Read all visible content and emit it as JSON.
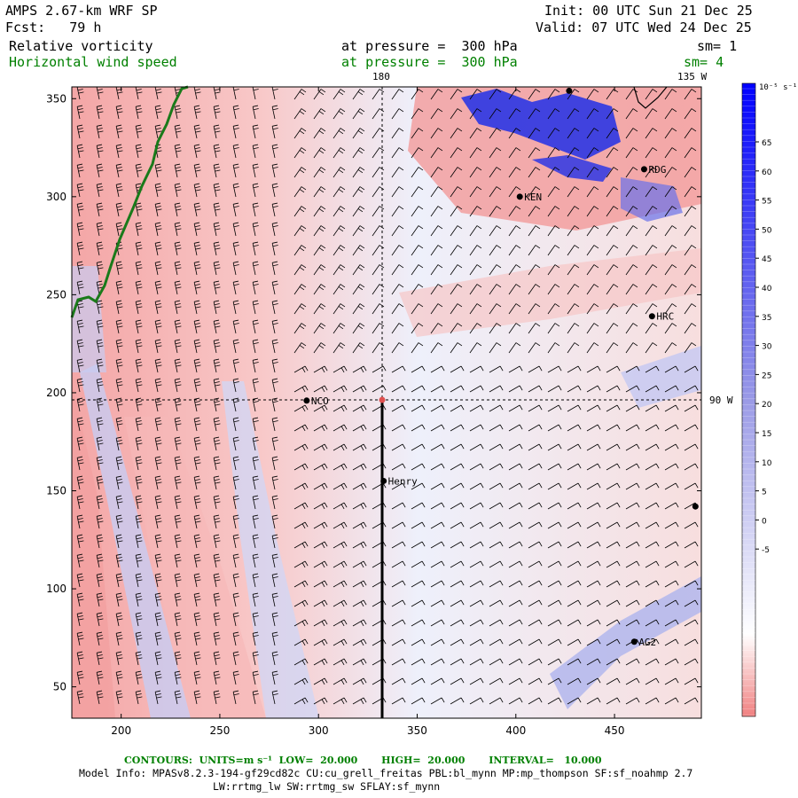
{
  "header": {
    "model_title": "AMPS 2.67-km WRF SP",
    "init_line": "Init: 00 UTC Sun 21 Dec 25",
    "fcst_line": "Fcst:   79 h",
    "valid_line": "Valid: 07 UTC Wed 24 Dec 25",
    "field1_name": "Relative vorticity",
    "field1_level": "at pressure =  300 hPa",
    "field1_sm": "sm= 1",
    "field2_name": "Horizontal wind speed",
    "field2_level": "at pressure =  300 hPa",
    "field2_sm": "sm= 4"
  },
  "map_labels": {
    "lon_180": "180",
    "lon_135w": "135 W",
    "lon_90w": "90 W",
    "stations": [
      {
        "name": "RDG",
        "x": 465,
        "y": 314
      },
      {
        "name": "KEN",
        "x": 402,
        "y": 300
      },
      {
        "name": "HRC",
        "x": 469,
        "y": 239
      },
      {
        "name": "NCO",
        "x": 294,
        "y": 196
      },
      {
        "name": "Henry",
        "x": 333,
        "y": 155
      },
      {
        "name": "AG2",
        "x": 460,
        "y": 73
      },
      {
        "name": "",
        "x": 427,
        "y": 354
      },
      {
        "name": "",
        "x": 491,
        "y": 142
      }
    ]
  },
  "axes": {
    "x_ticks": [
      "200",
      "250",
      "300",
      "350",
      "400",
      "450"
    ],
    "x_values": [
      200,
      250,
      300,
      350,
      400,
      450
    ],
    "y_ticks": [
      "50",
      "100",
      "150",
      "200",
      "250",
      "300",
      "350"
    ],
    "y_values": [
      50,
      100,
      150,
      200,
      250,
      300,
      350
    ],
    "xlim": [
      175,
      494
    ],
    "ylim": [
      34,
      356
    ]
  },
  "colorbar": {
    "unit_label": "10⁻⁵ s⁻¹",
    "ticks": [
      "65",
      "60",
      "55",
      "50",
      "45",
      "40",
      "35",
      "30",
      "25",
      "20",
      "15",
      "10",
      "5",
      "0",
      "-5"
    ],
    "max_color": "#0000ff",
    "min_color": "#f08080"
  },
  "footer": {
    "contours_label": "CONTOURS:  UNITS=m s⁻¹  LOW=  20.000       HIGH=  20.000       INTERVAL=   10.000",
    "model_info": "Model Info: MPASv8.2.3-194-gf29cd82c CU:cu_grell_freitas PBL:bl_mynn MP:mp_thompson SF:sf_noahmp 2.7",
    "model_info2": "LW:rrtmg_lw SW:rrtmg_sw SFLAY:sf_mynn"
  }
}
